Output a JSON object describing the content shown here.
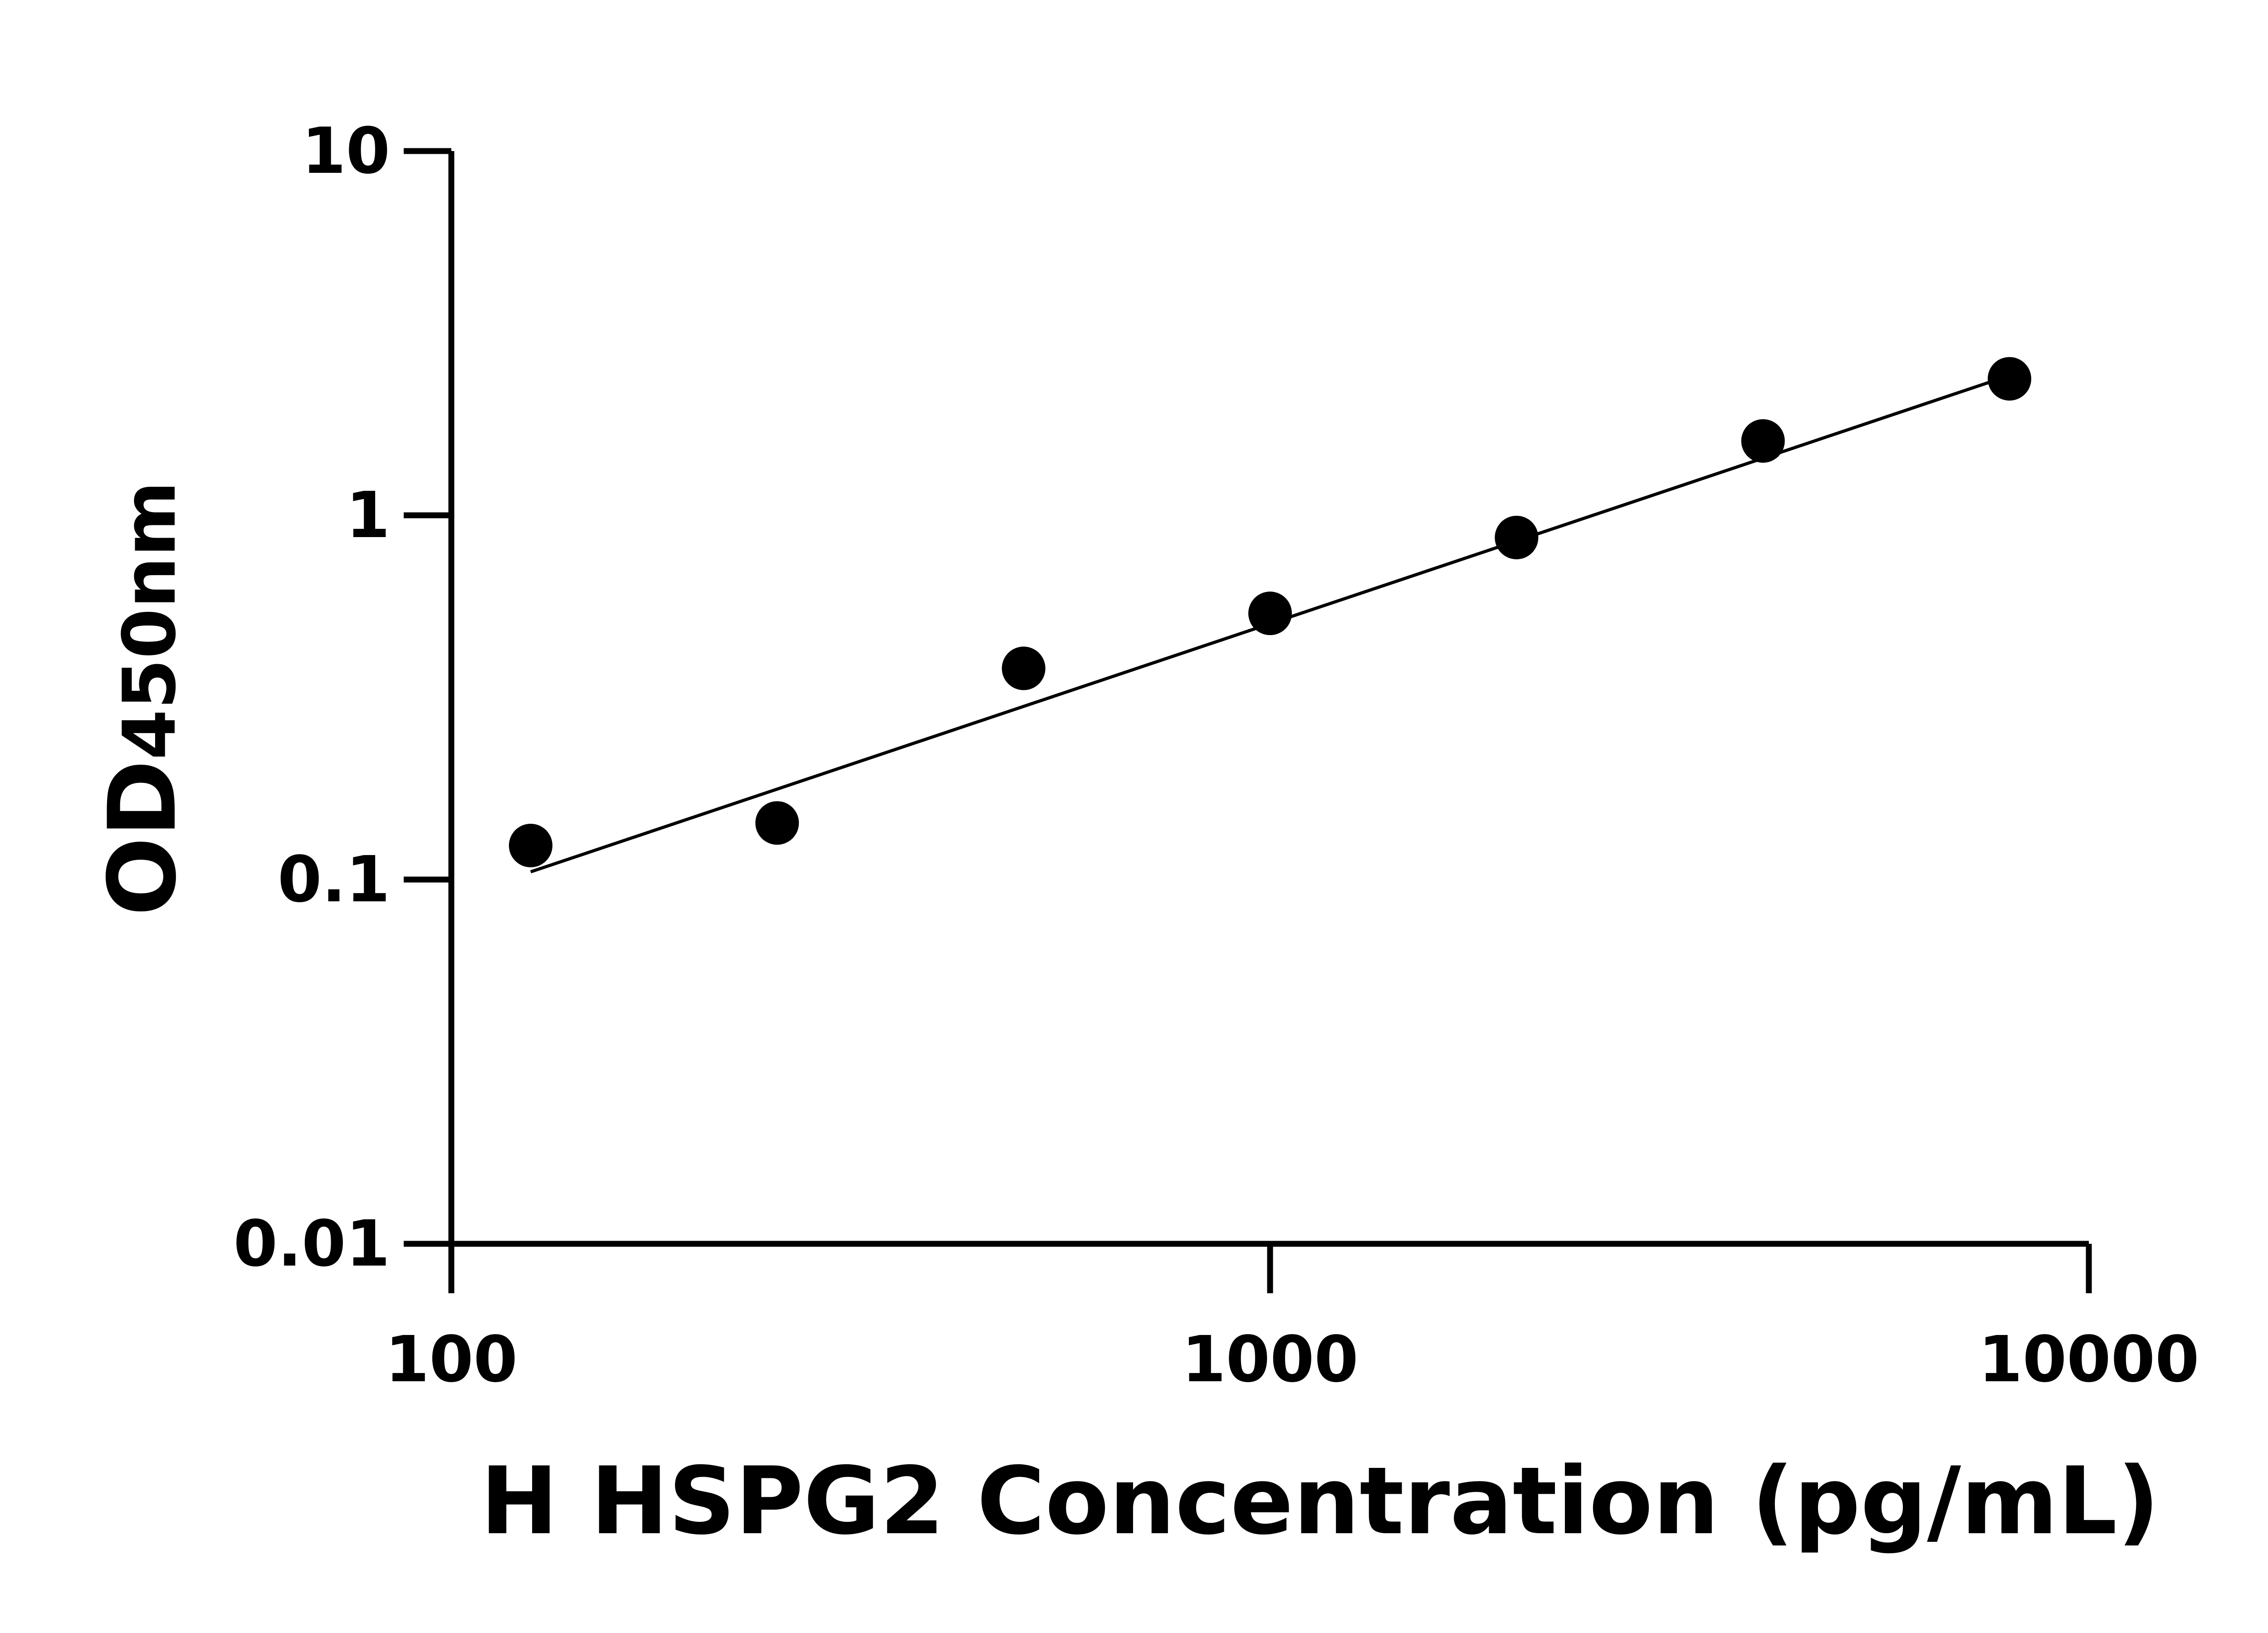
{
  "chart_data": {
    "type": "scatter",
    "title": "",
    "xlabel": "H HSPG2 Concentration (pg/mL)",
    "ylabel_main": "OD",
    "ylabel_sub": "450nm",
    "x_scale": "log",
    "y_scale": "log",
    "xlim": [
      100,
      10000
    ],
    "ylim": [
      0.01,
      10
    ],
    "x_ticks": [
      "100",
      "1000",
      "10000"
    ],
    "y_ticks": [
      "0.01",
      "0.1",
      "1",
      "10"
    ],
    "grid": false,
    "points": {
      "x": [
        125,
        250,
        500,
        1000,
        2000,
        4000,
        8000
      ],
      "y": [
        0.124,
        0.143,
        0.38,
        0.538,
        0.869,
        1.6,
        2.37
      ]
    },
    "fit_line": {
      "x": [
        125,
        8000
      ],
      "y": [
        0.105,
        2.42
      ]
    },
    "colors": {
      "marker": "#000000",
      "line": "#000000"
    }
  }
}
